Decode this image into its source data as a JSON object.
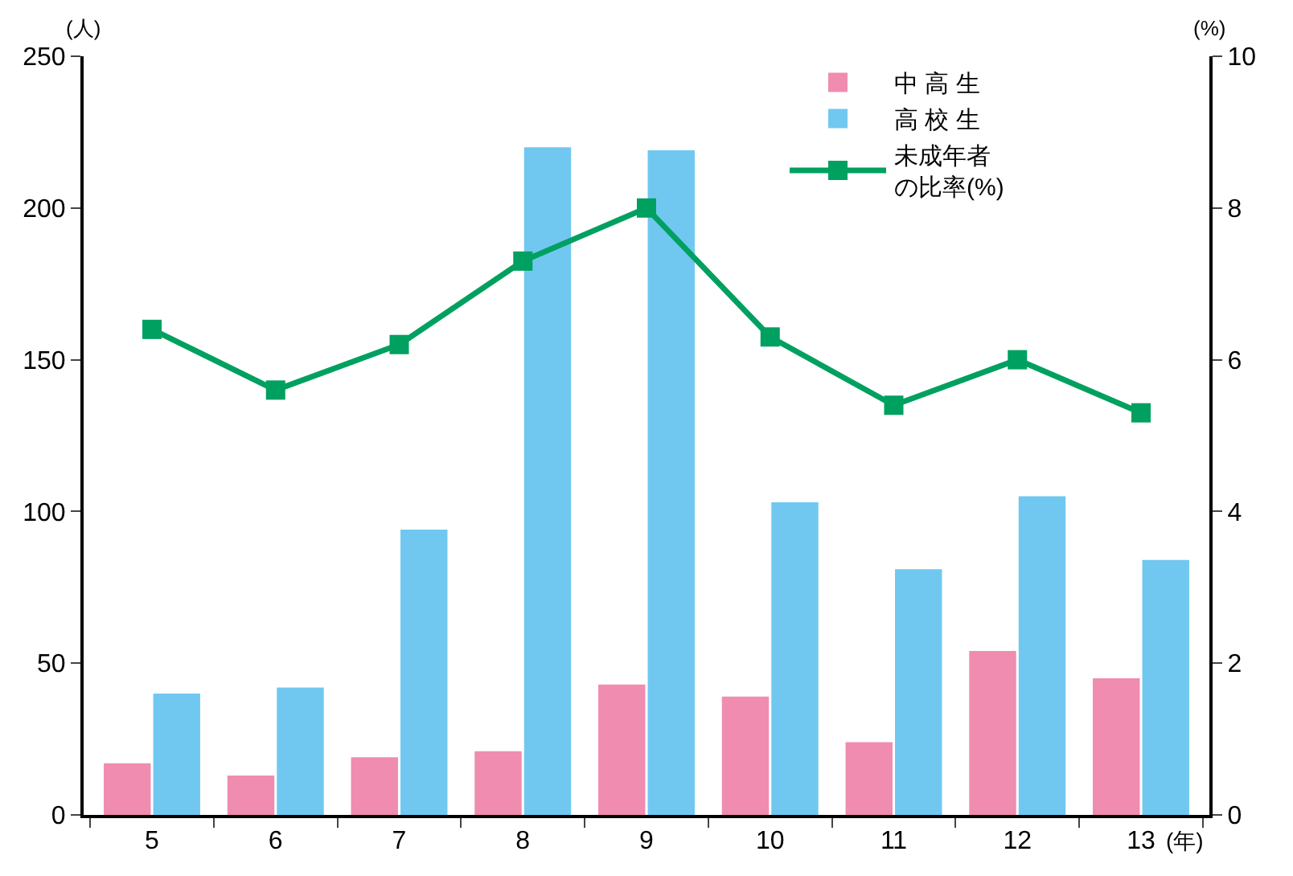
{
  "chart_data": {
    "type": "bar",
    "xlabel": "(年)",
    "ylabel": "(人)",
    "y2label": "(%)",
    "categories": [
      "5",
      "6",
      "7",
      "8",
      "9",
      "10",
      "11",
      "12",
      "13"
    ],
    "series": [
      {
        "name": "中 高 生",
        "color": "#f08cb0",
        "values": [
          17,
          13,
          19,
          21,
          43,
          39,
          24,
          54,
          45
        ]
      },
      {
        "name": "高 校 生",
        "color": "#70c8f0",
        "values": [
          40,
          42,
          94,
          220,
          219,
          103,
          81,
          105,
          84
        ]
      },
      {
        "name": "未成年者の比率(%)",
        "type": "line",
        "axis": "y2",
        "color": "#00a060",
        "marker": "square",
        "values": [
          6.4,
          5.6,
          6.2,
          7.3,
          8.0,
          6.3,
          5.4,
          6.0,
          5.3
        ]
      }
    ],
    "ylim": [
      0,
      250
    ],
    "yticks": [
      0,
      50,
      100,
      150,
      200,
      250
    ],
    "y2lim": [
      0,
      10
    ],
    "y2ticks": [
      0,
      2,
      4,
      6,
      8,
      10
    ],
    "grid": false,
    "legend": "top right"
  }
}
